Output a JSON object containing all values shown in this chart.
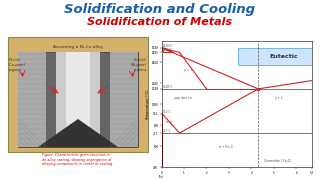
{
  "title1": "Solidification and Cooling",
  "title2": "Solidification of Metals",
  "title1_color": "#1a5ea8",
  "title2_color": "#cc0000",
  "bg_color": "#ffffff",
  "title1_fontsize": 9.5,
  "title2_fontsize": 8.0,
  "eutectic_label": "Eutectic",
  "casting_label": "Assuming a Ni-Cu alloy",
  "ni_rich_label": "Ni-rich\n(Cu-poor)\nregions",
  "cu_rich_label": "Cu-rich\n(Ni-poor)\nregions",
  "figure_caption": "Figure: Characteristic grain structure in\nan alloy casting, showing segregation of\nalloying components in center of casting.",
  "phase_xlabel": "Composition (wt% C)",
  "phase_ylabel": "Temperature (°C)",
  "phase_box_bg": "#cce5ff",
  "phase_box_edge": "#5599cc",
  "red": "#cc2222",
  "dark_gray": "#444444",
  "tan": "#d4a96a",
  "cast_outer": "#555555"
}
